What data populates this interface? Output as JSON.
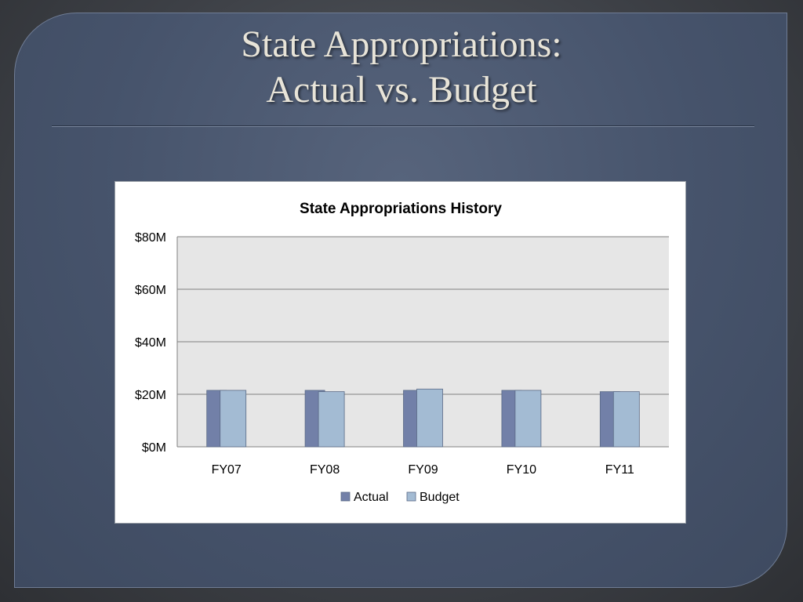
{
  "slide": {
    "title_line1": "State Appropriations:",
    "title_line2": "Actual vs. Budget"
  },
  "colors": {
    "actual": "#7280a8",
    "budget": "#a3bbd3",
    "plot_bg": "#e6e6e6",
    "gridline": "#808080"
  },
  "chart_data": {
    "type": "bar",
    "title": "State Appropriations  History",
    "categories": [
      "FY07",
      "FY08",
      "FY09",
      "FY10",
      "FY11"
    ],
    "series": [
      {
        "name": "Actual",
        "values": [
          21.5,
          21.5,
          21.5,
          21.5,
          21.0
        ]
      },
      {
        "name": "Budget",
        "values": [
          21.5,
          21.0,
          22.0,
          21.5,
          21.0
        ]
      }
    ],
    "ylim": [
      0,
      80
    ],
    "yticks": [
      {
        "value": 0,
        "label": "$0M"
      },
      {
        "value": 20,
        "label": "$20M"
      },
      {
        "value": 40,
        "label": "$40M"
      },
      {
        "value": 60,
        "label": "$60M"
      },
      {
        "value": 80,
        "label": "$80M"
      }
    ],
    "grid": true,
    "legend": "bottom-center"
  }
}
